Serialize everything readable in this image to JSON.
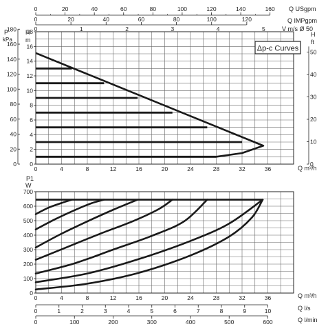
{
  "chart_data": [
    {
      "type": "line",
      "title": "Δp-c Curves",
      "top_axes": {
        "usgpm": {
          "label": "Q USgpm",
          "ticks": [
            "0",
            "20",
            "40",
            "60",
            "80",
            "100",
            "120",
            "140",
            "160"
          ]
        },
        "impgpm": {
          "label": "Q IMPgpm",
          "ticks": [
            "0",
            "20",
            "40",
            "60",
            "80",
            "100",
            "120"
          ]
        },
        "velocity": {
          "label": "V m/s Ø 50",
          "ticks": [
            "0",
            "1",
            "2",
            "3",
            "4",
            "5"
          ]
        }
      },
      "x": {
        "label": "Q m³/h",
        "ticks": [
          "0",
          "4",
          "8",
          "12",
          "16",
          "20",
          "24",
          "28",
          "32",
          "36"
        ],
        "range": [
          0,
          40
        ]
      },
      "y_left": {
        "kpa": {
          "label_p": "P",
          "label_unit": "kPa",
          "ticks": [
            "0",
            "20",
            "40",
            "60",
            "80",
            "100",
            "120",
            "140",
            "160",
            "180"
          ]
        },
        "m": {
          "label_h": "H",
          "label_unit": "m",
          "ticks": [
            "0",
            "2",
            "4",
            "6",
            "8",
            "10",
            "12",
            "14",
            "16",
            "18"
          ],
          "range": [
            0,
            18
          ]
        }
      },
      "y_right": {
        "label_h": "H",
        "label_unit": "ft",
        "ticks": [
          "0",
          "10",
          "20",
          "30",
          "40",
          "50"
        ]
      },
      "envelope": [
        [
          0,
          15.1
        ],
        [
          35.3,
          2.5
        ],
        [
          32,
          1.5
        ],
        [
          28,
          1.0
        ],
        [
          0,
          1.0
        ]
      ],
      "series": [
        {
          "h": 13,
          "q_end": 5.6
        },
        {
          "h": 11,
          "q_end": 10.6
        },
        {
          "h": 9,
          "q_end": 15.8
        },
        {
          "h": 7,
          "q_end": 21.2
        },
        {
          "h": 5,
          "q_end": 26.6
        },
        {
          "h": 3,
          "q_end": 32.0
        },
        {
          "h": 1,
          "q_end": 28.0
        }
      ]
    },
    {
      "type": "line",
      "y": {
        "label_p": "P1",
        "label_unit": "W",
        "ticks": [
          "0",
          "100",
          "200",
          "300",
          "400",
          "500",
          "600",
          "700"
        ],
        "range": [
          0,
          700
        ]
      },
      "x": {
        "label": "Q m³/h",
        "ticks": [
          "0",
          "4",
          "8",
          "12",
          "16",
          "20",
          "24",
          "28",
          "32",
          "36"
        ],
        "range": [
          0,
          40
        ]
      },
      "bottom_axes": {
        "ls": {
          "label": "Q l/s",
          "ticks": [
            "0",
            "1",
            "2",
            "3",
            "4",
            "5",
            "6",
            "7",
            "8",
            "9",
            "10"
          ]
        },
        "lmin": {
          "label": "Q l/min",
          "ticks": [
            "0",
            "100",
            "200",
            "300",
            "400",
            "500",
            "600"
          ]
        }
      },
      "limit_line": {
        "y": 645,
        "x_end": 35.2
      },
      "series": [
        {
          "points": [
            [
              0,
              545
            ],
            [
              2,
              590
            ],
            [
              4,
              622
            ],
            [
              5.6,
              645
            ]
          ]
        },
        {
          "points": [
            [
              0,
              440
            ],
            [
              3,
              510
            ],
            [
              6,
              572
            ],
            [
              8.5,
              618
            ],
            [
              10.6,
              645
            ]
          ]
        },
        {
          "points": [
            [
              0,
              315
            ],
            [
              4,
              410
            ],
            [
              8,
              495
            ],
            [
              12,
              575
            ],
            [
              15.8,
              645
            ]
          ]
        },
        {
          "points": [
            [
              0,
              230
            ],
            [
              5,
              320
            ],
            [
              10,
              410
            ],
            [
              15,
              495
            ],
            [
              19,
              578
            ],
            [
              21.2,
              645
            ]
          ]
        },
        {
          "points": [
            [
              0,
              135
            ],
            [
              6,
              205
            ],
            [
              12,
              300
            ],
            [
              18,
              395
            ],
            [
              23,
              495
            ],
            [
              26.6,
              645
            ]
          ]
        },
        {
          "points": [
            [
              0,
              75
            ],
            [
              8,
              135
            ],
            [
              16,
              235
            ],
            [
              24,
              360
            ],
            [
              30,
              480
            ],
            [
              35.2,
              645
            ]
          ]
        },
        {
          "points": [
            [
              0,
              25
            ],
            [
              8,
              65
            ],
            [
              16,
              140
            ],
            [
              24,
              260
            ],
            [
              30,
              390
            ],
            [
              33.5,
              520
            ],
            [
              35.2,
              645
            ]
          ]
        }
      ]
    }
  ]
}
